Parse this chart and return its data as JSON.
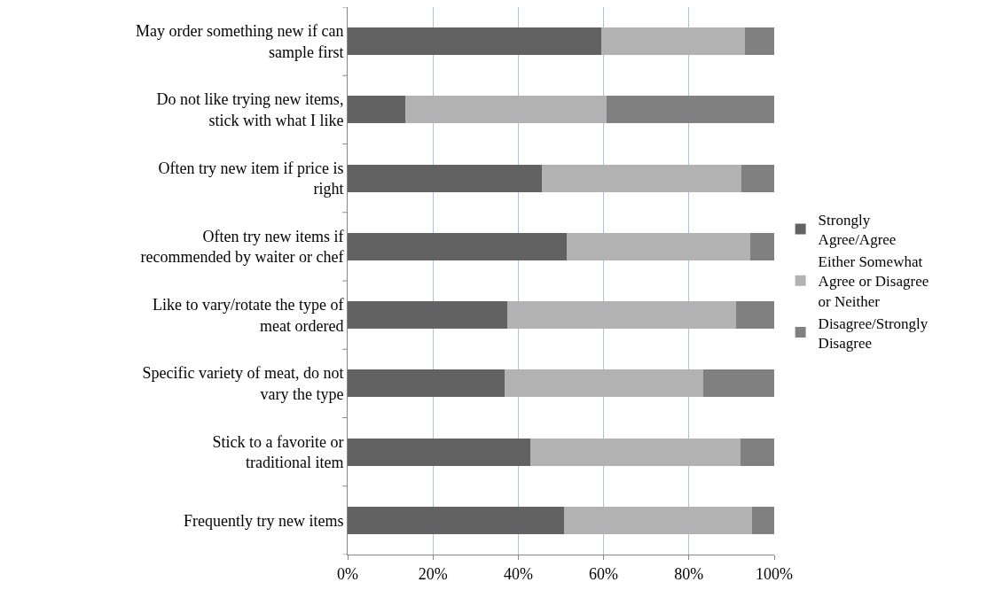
{
  "chart_data": {
    "type": "bar",
    "orientation": "horizontal",
    "stacked": true,
    "categories": [
      "May order something new if can sample first",
      "Do not like trying new items, stick with what I like",
      "Often try new item if price is right",
      "Often try new items if recommended by waiter or chef",
      "Like to vary/rotate the type of meat ordered",
      "Specific variety of meat, do not vary the type",
      "Stick to a favorite or traditional item",
      "Frequently try new items"
    ],
    "series": [
      {
        "name": "Strongly Agree/Agree",
        "color": "#626262",
        "values": [
          59.4,
          13.5,
          45.5,
          51.3,
          37.4,
          36.7,
          42.8,
          50.7
        ]
      },
      {
        "name": "Either Somewhat Agree or Disagree or Neither",
        "color": "#b2b2b2",
        "values": [
          33.7,
          47.3,
          46.9,
          43.0,
          53.7,
          46.7,
          49.2,
          44.2
        ]
      },
      {
        "name": "Disagree/Strongly Disagree",
        "color": "#808080",
        "values": [
          6.9,
          39.2,
          7.6,
          5.7,
          8.9,
          16.6,
          8.0,
          5.1
        ]
      }
    ],
    "xlim": [
      0,
      100
    ],
    "xticks": [
      {
        "value": 0,
        "label": "0%"
      },
      {
        "value": 20,
        "label": "20%"
      },
      {
        "value": 40,
        "label": "40%"
      },
      {
        "value": 60,
        "label": "60%"
      },
      {
        "value": 80,
        "label": "80%"
      },
      {
        "value": 100,
        "label": "100%"
      }
    ],
    "grid": "x",
    "legend": "right"
  }
}
